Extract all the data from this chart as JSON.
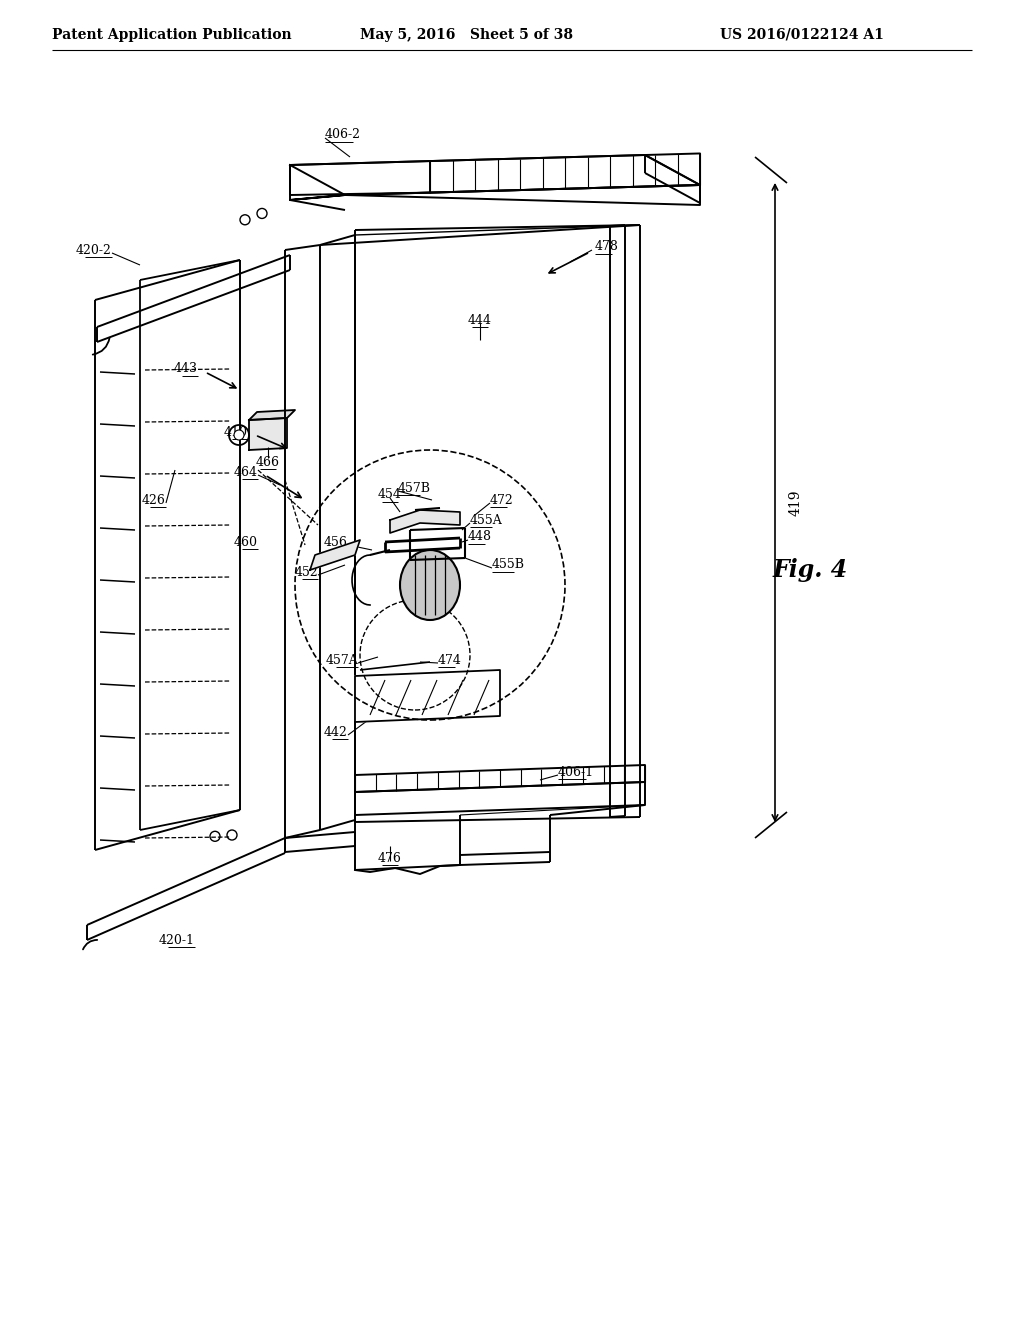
{
  "header_left": "Patent Application Publication",
  "header_mid": "May 5, 2016   Sheet 5 of 38",
  "header_right": "US 2016/0122124 A1",
  "fig_label": "Fig. 4",
  "bg_color": "#ffffff"
}
